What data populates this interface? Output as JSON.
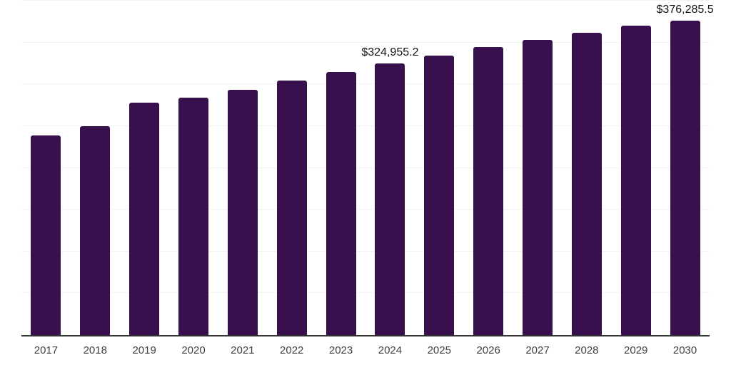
{
  "chart": {
    "background": "#ffffff",
    "bar_color": "#37104D",
    "grid_color": "#f2f2f2",
    "axis_color": "#333333",
    "tick_label_color": "#3f3f3f",
    "data_label_color": "#141414"
  },
  "chart_data": {
    "type": "bar",
    "title": "",
    "xlabel": "",
    "ylabel": "",
    "legend": "none",
    "grid": "horizontal",
    "ylim": [
      0,
      400000
    ],
    "y_gridline_step": 50000,
    "y_axis_labels_visible": false,
    "categories": [
      "2017",
      "2018",
      "2019",
      "2020",
      "2021",
      "2022",
      "2023",
      "2024",
      "2025",
      "2026",
      "2027",
      "2028",
      "2029",
      "2030"
    ],
    "values": [
      239000,
      249800,
      278200,
      284100,
      293500,
      304100,
      314700,
      324955.2,
      334100,
      344800,
      352800,
      361300,
      369800,
      376285.5
    ],
    "data_labels": [
      "",
      "",
      "",
      "",
      "",
      "",
      "",
      "$324,955.2",
      "",
      "",
      "",
      "",
      "",
      "$376,285.5"
    ]
  }
}
